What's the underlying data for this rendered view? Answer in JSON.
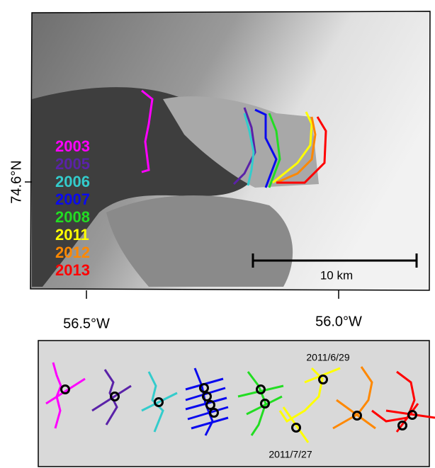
{
  "map": {
    "latitude_label": "74.6°N",
    "longitude_labels": [
      "56.5°W",
      "56.0°W"
    ],
    "scale_bar_label": "10 km",
    "years": [
      {
        "label": "2003",
        "color": "#ff00ff"
      },
      {
        "label": "2005",
        "color": "#5a22a8"
      },
      {
        "label": "2006",
        "color": "#33cccc"
      },
      {
        "label": "2007",
        "color": "#0a0aee"
      },
      {
        "label": "2008",
        "color": "#22dd22"
      },
      {
        "label": "2011",
        "color": "#ffff00"
      },
      {
        "label": "2012",
        "color": "#ff8800"
      },
      {
        "label": "2013",
        "color": "#ff0000"
      }
    ]
  },
  "inset": {
    "date_labels": [
      "2011/6/29",
      "2011/7/27"
    ]
  }
}
